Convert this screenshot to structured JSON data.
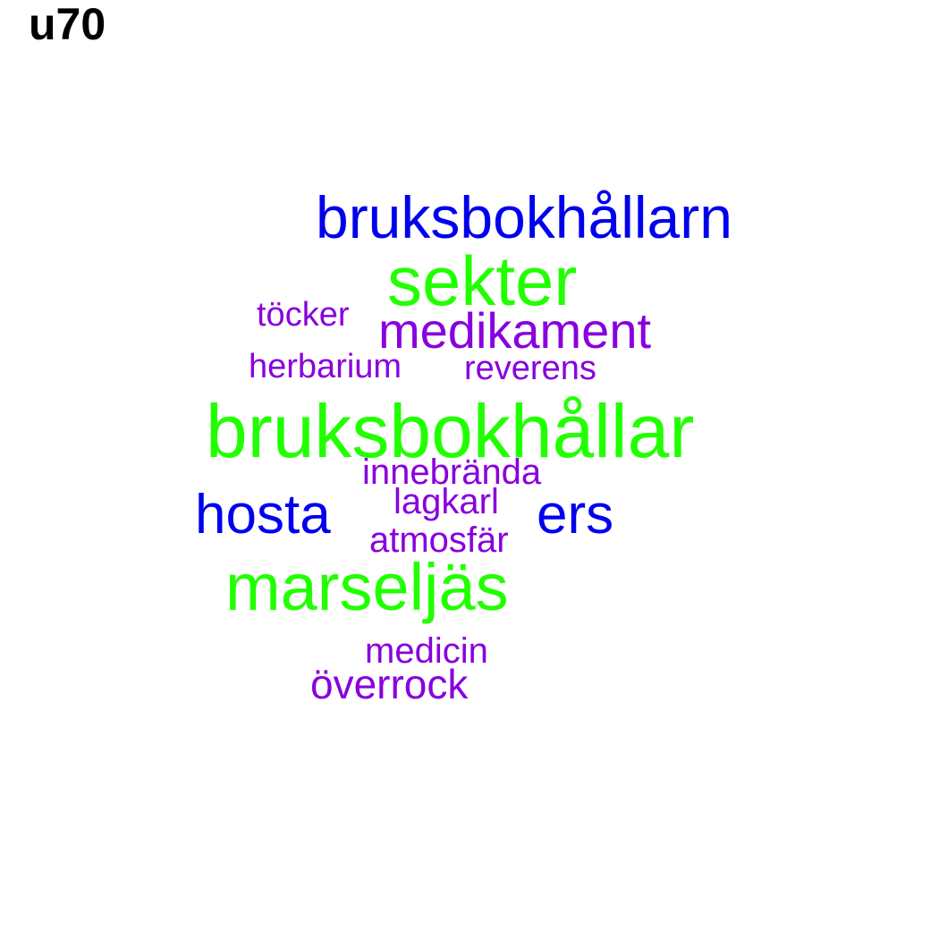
{
  "title": "u70",
  "colors": {
    "green": "#22ff00",
    "blue": "#0000ee",
    "purple": "#8800dd"
  },
  "words": [
    {
      "text": "bruksbokhållarn",
      "color": "blue"
    },
    {
      "text": "sekter",
      "color": "green"
    },
    {
      "text": "töcker",
      "color": "purple"
    },
    {
      "text": "medikament",
      "color": "purple"
    },
    {
      "text": "herbarium",
      "color": "purple"
    },
    {
      "text": "reverens",
      "color": "purple"
    },
    {
      "text": "bruksbokhållar",
      "color": "green"
    },
    {
      "text": "innebrända",
      "color": "purple"
    },
    {
      "text": "lagkarl",
      "color": "purple"
    },
    {
      "text": "hosta",
      "color": "blue"
    },
    {
      "text": "ers",
      "color": "blue"
    },
    {
      "text": "atmosfär",
      "color": "purple"
    },
    {
      "text": "marseljäs",
      "color": "green"
    },
    {
      "text": "medicin",
      "color": "purple"
    },
    {
      "text": "överrock",
      "color": "purple"
    }
  ]
}
